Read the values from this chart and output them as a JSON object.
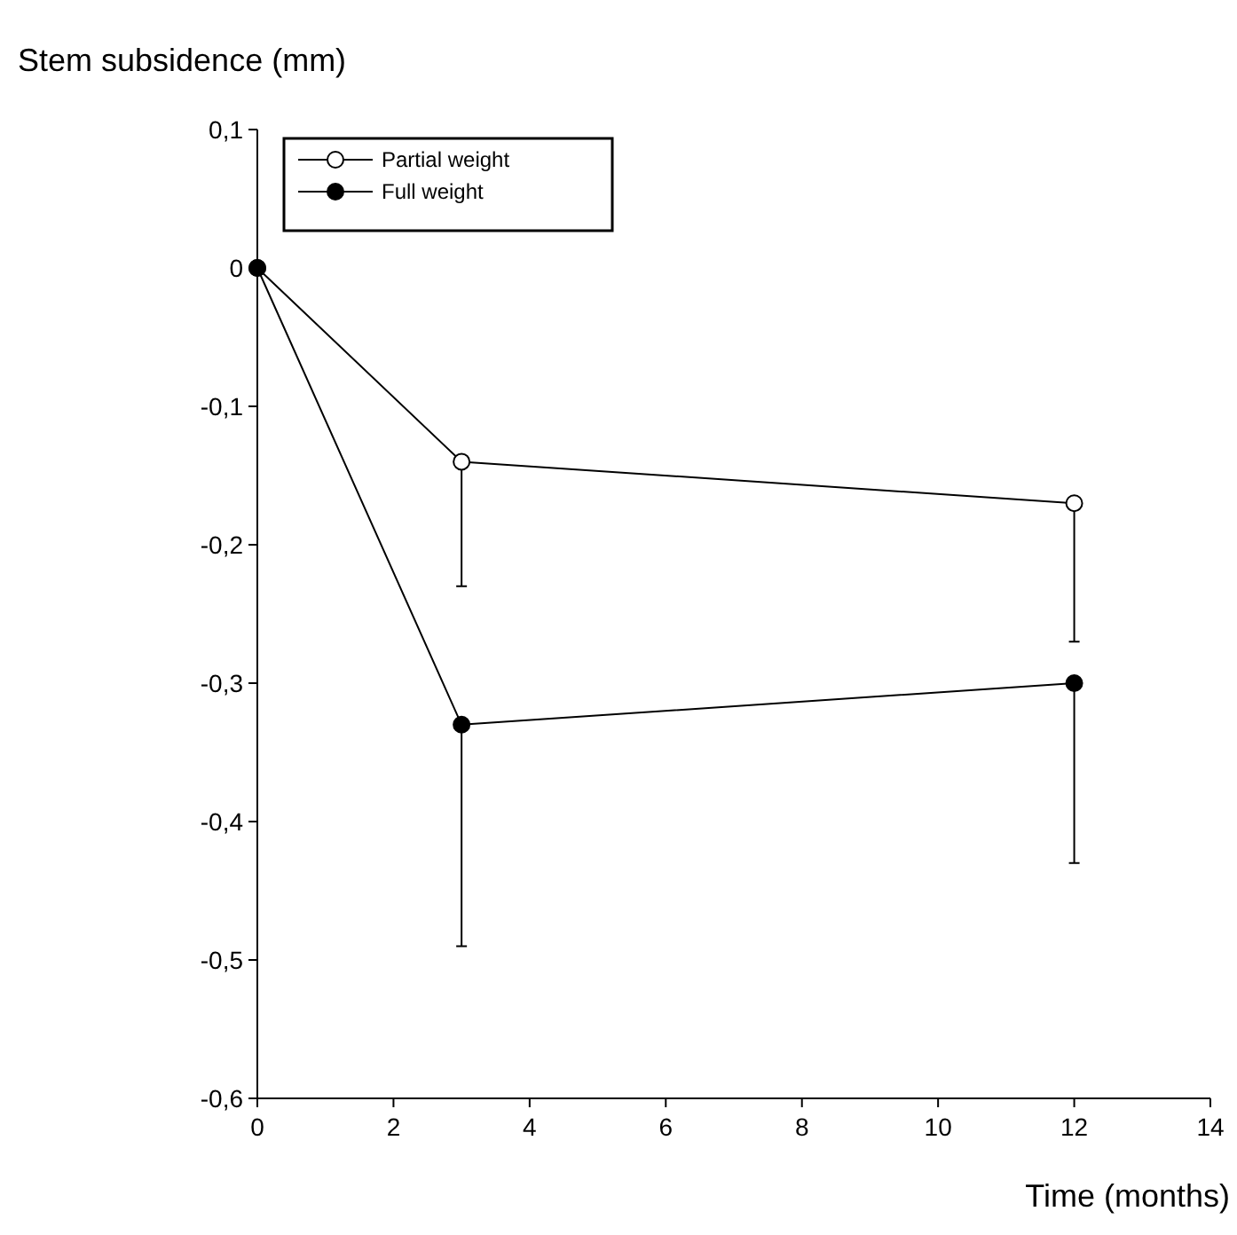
{
  "chart_data": {
    "type": "line",
    "ylabel": "Stem subsidence (mm)",
    "xlabel": "Time (months)",
    "x": [
      0,
      3,
      12
    ],
    "series": [
      {
        "name": "Partial weight",
        "color": "#000000",
        "values": [
          0,
          -0.14,
          -0.17
        ],
        "errors": [
          null,
          [
            -0.23,
            -0.14
          ],
          [
            -0.27,
            -0.17
          ]
        ]
      },
      {
        "name": "Full weight",
        "color": "#000000",
        "values": [
          0,
          -0.33,
          -0.3
        ],
        "errors": [
          null,
          [
            -0.49,
            -0.33
          ],
          [
            -0.43,
            -0.3
          ]
        ]
      }
    ],
    "xlim": [
      0,
      14
    ],
    "xticks": [
      0,
      2,
      4,
      6,
      8,
      10,
      12,
      14
    ],
    "ylim": [
      -0.6,
      0.1
    ],
    "yticks": [
      {
        "value": -0.6,
        "label": "-0,6"
      },
      {
        "value": -0.5,
        "label": "-0,5"
      },
      {
        "value": -0.4,
        "label": "-0,4"
      },
      {
        "value": -0.3,
        "label": "-0,3"
      },
      {
        "value": -0.2,
        "label": "-0,2"
      },
      {
        "value": -0.1,
        "label": "-0,1"
      },
      {
        "value": 0,
        "label": "0"
      },
      {
        "value": 0.1,
        "label": "0,1"
      }
    ],
    "marker": "circle",
    "line_style": "solid",
    "legend": "top left",
    "grid": false
  }
}
